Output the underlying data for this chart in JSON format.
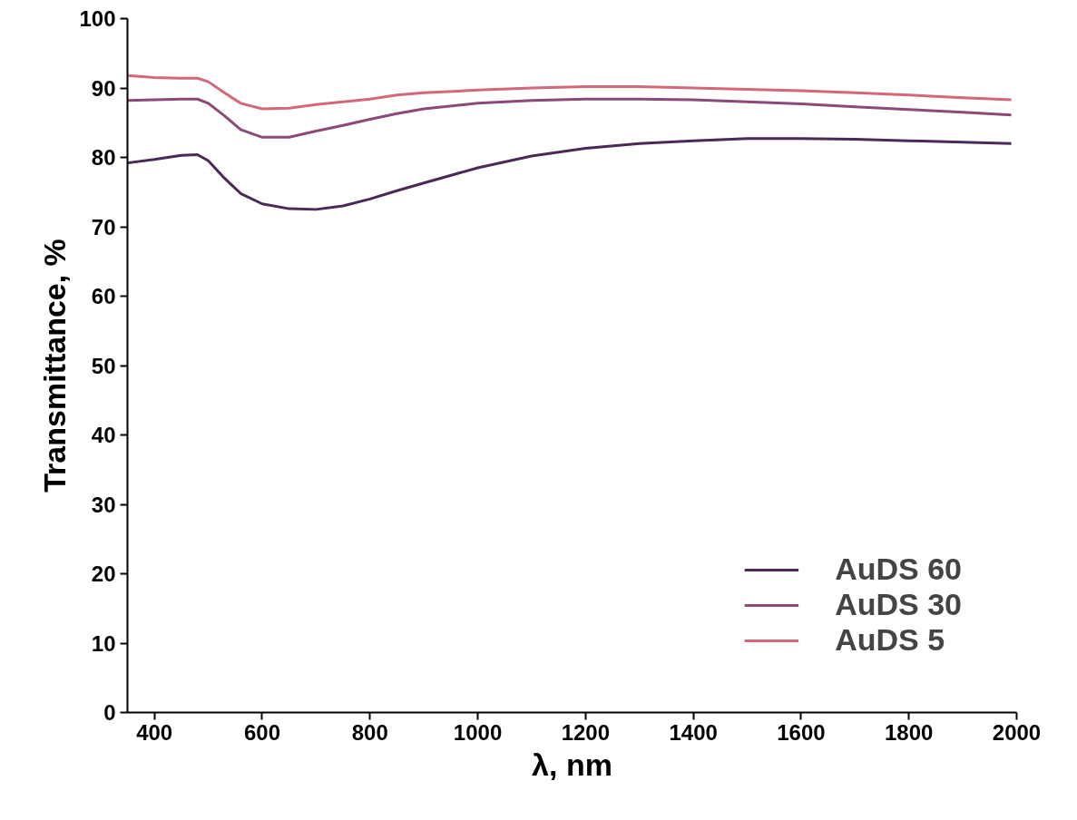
{
  "chart_data": {
    "type": "line",
    "xlabel": "λ, nm",
    "ylabel": "Transmittance, %",
    "xlim": [
      350,
      2000
    ],
    "ylim": [
      0,
      100
    ],
    "xticks": [
      400,
      600,
      800,
      1000,
      1200,
      1400,
      1600,
      1800,
      2000
    ],
    "yticks": [
      0,
      10,
      20,
      30,
      40,
      50,
      60,
      70,
      80,
      90,
      100
    ],
    "grid": false,
    "legend": "bottom right",
    "marker": "none",
    "line_style": "solid",
    "x": [
      350,
      400,
      450,
      480,
      500,
      530,
      560,
      600,
      650,
      700,
      750,
      800,
      850,
      900,
      1000,
      1100,
      1200,
      1300,
      1400,
      1500,
      1600,
      1700,
      1800,
      1900,
      1990
    ],
    "series": [
      {
        "name": "AuDS 60",
        "color": "#4a2a55",
        "values": [
          79.2,
          79.7,
          80.3,
          80.4,
          79.5,
          77,
          74.8,
          73.3,
          72.6,
          72.5,
          73,
          74,
          75.2,
          76.3,
          78.5,
          80.2,
          81.3,
          82,
          82.4,
          82.7,
          82.7,
          82.6,
          82.4,
          82.2,
          82
        ]
      },
      {
        "name": "AuDS 30",
        "color": "#8c4a78",
        "values": [
          88.2,
          88.3,
          88.4,
          88.4,
          87.8,
          86,
          84,
          82.9,
          82.9,
          83.8,
          84.6,
          85.5,
          86.3,
          87,
          87.8,
          88.2,
          88.4,
          88.4,
          88.3,
          88,
          87.7,
          87.3,
          86.9,
          86.5,
          86.1
        ]
      },
      {
        "name": "AuDS 5",
        "color": "#d4687a",
        "values": [
          91.8,
          91.5,
          91.4,
          91.4,
          90.9,
          89.3,
          87.8,
          87,
          87.1,
          87.6,
          88,
          88.4,
          89,
          89.3,
          89.7,
          90,
          90.2,
          90.2,
          90,
          89.8,
          89.6,
          89.3,
          89,
          88.6,
          88.3
        ]
      }
    ]
  }
}
